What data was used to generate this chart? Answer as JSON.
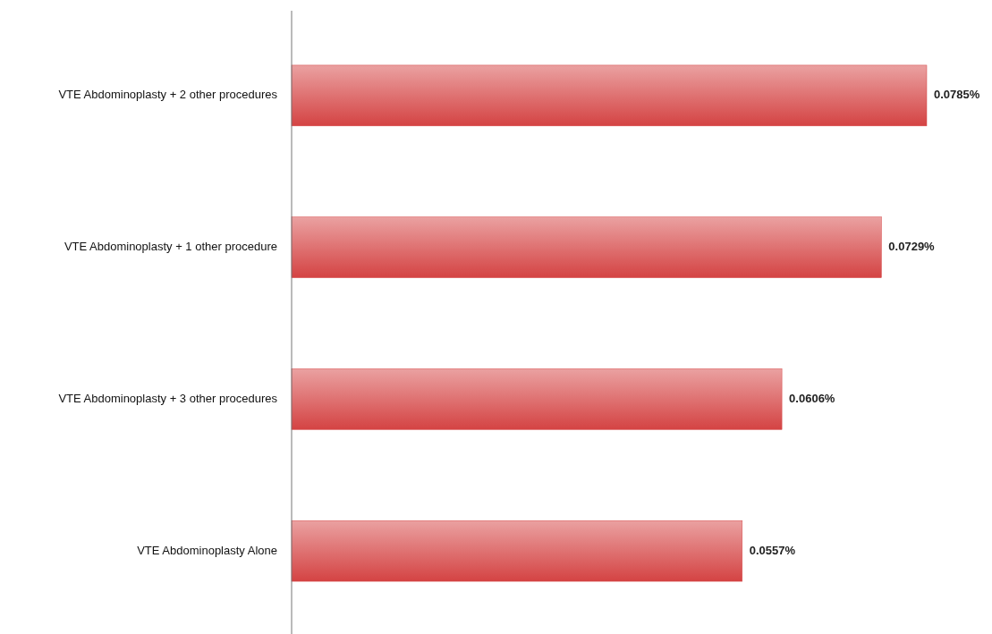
{
  "chart_data": {
    "type": "bar",
    "orientation": "horizontal",
    "categories": [
      "VTE Abdominoplasty + 2 other procedures",
      "VTE Abdominoplasty + 1 other procedure",
      "VTE Abdominoplasty + 3 other procedures",
      "VTE Abdominoplasty Alone"
    ],
    "values": [
      0.0785,
      0.0729,
      0.0606,
      0.0557
    ],
    "value_labels": [
      "0.0785%",
      "0.0729%",
      "0.0606%",
      "0.0557%"
    ],
    "color": "#d44343"
  }
}
